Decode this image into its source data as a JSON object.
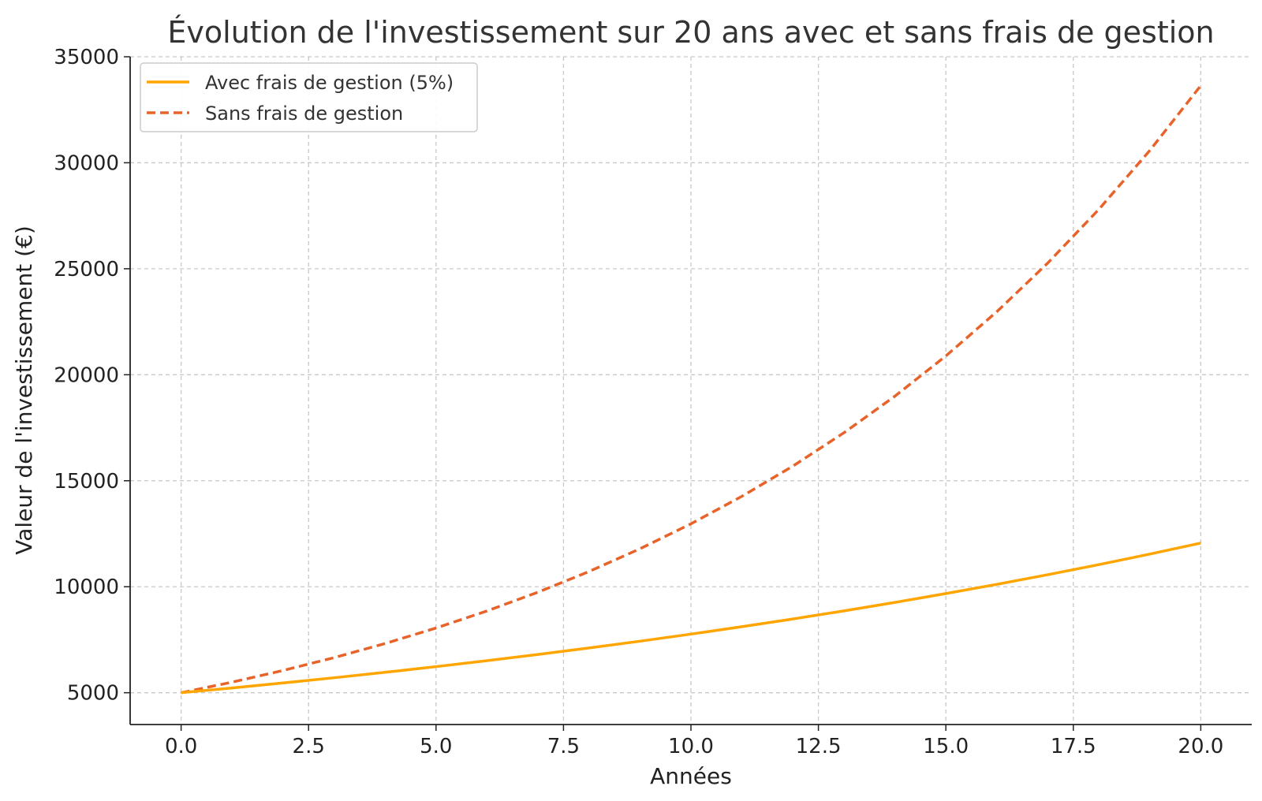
{
  "chart_data": {
    "type": "line",
    "title": "Évolution de l'investissement sur 20 ans avec et sans frais de gestion",
    "xlabel": "Années",
    "ylabel": "Valeur de l'investissement (€)",
    "xlim": [
      -1,
      21
    ],
    "ylim": [
      3500,
      35000
    ],
    "grid": true,
    "legend_position": "top-left",
    "x_ticks": [
      0.0,
      2.5,
      5.0,
      7.5,
      10.0,
      12.5,
      15.0,
      17.5,
      20.0
    ],
    "x_tick_labels": [
      "0.0",
      "2.5",
      "5.0",
      "7.5",
      "10.0",
      "12.5",
      "15.0",
      "17.5",
      "20.0"
    ],
    "y_ticks": [
      5000,
      10000,
      15000,
      20000,
      25000,
      30000,
      35000
    ],
    "y_tick_labels": [
      "5000",
      "10000",
      "15000",
      "20000",
      "25000",
      "30000",
      "35000"
    ],
    "x": [
      0,
      1,
      2,
      3,
      4,
      5,
      6,
      7,
      8,
      9,
      10,
      11,
      12,
      13,
      14,
      15,
      16,
      17,
      18,
      19,
      20
    ],
    "series": [
      {
        "name": "Avec frais de gestion (5%)",
        "color": "#FFA500",
        "dash": "solid",
        "values": [
          5000,
          5225,
          5460,
          5706,
          5963,
          6231,
          6512,
          6805,
          7111,
          7431,
          7765,
          8115,
          8480,
          8861,
          9260,
          9677,
          10113,
          10568,
          11043,
          11540,
          12060
        ]
      },
      {
        "name": "Sans frais de gestion",
        "color": "#E8632A",
        "dash": "dashed",
        "values": [
          5000,
          5500,
          6050,
          6655,
          7321,
          8053,
          8858,
          9744,
          10718,
          11790,
          12969,
          14266,
          15692,
          17262,
          18988,
          20886,
          22975,
          25273,
          27800,
          30580,
          33637
        ]
      }
    ]
  }
}
